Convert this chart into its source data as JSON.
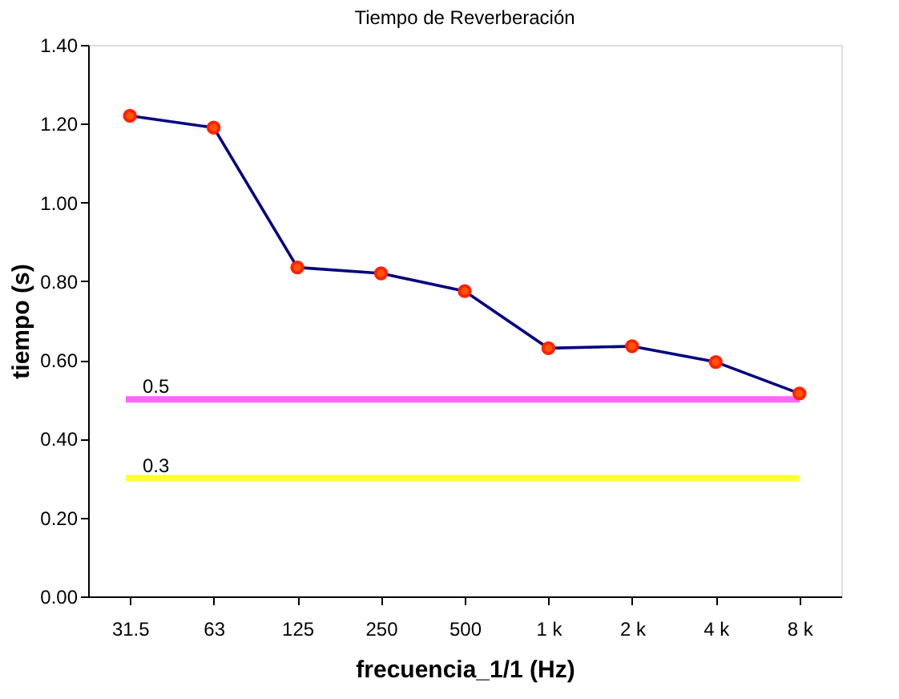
{
  "chart_data": {
    "type": "line",
    "title": "Tiempo de Reverberación",
    "xlabel": "frecuencia_1/1 (Hz)",
    "ylabel": "tiempo (s)",
    "categories": [
      "31.5",
      "63",
      "125",
      "250",
      "500",
      "1 k",
      "2 k",
      "4 k",
      "8 k"
    ],
    "series": [
      {
        "color": "#000080",
        "values": [
          1.22,
          1.19,
          0.835,
          0.82,
          0.775,
          0.63,
          0.635,
          0.595,
          0.515
        ]
      }
    ],
    "marker": "circle",
    "line_style": "solid",
    "ylim": [
      0,
      1.4
    ],
    "yticks": [
      {
        "value": 0,
        "label": "0.00"
      },
      {
        "value": 0.2,
        "label": "0.20"
      },
      {
        "value": 0.4,
        "label": "0.40"
      },
      {
        "value": 0.6,
        "label": "0.60"
      },
      {
        "value": 0.8,
        "label": "0.80"
      },
      {
        "value": 1.0,
        "label": "1.00"
      },
      {
        "value": 1.2,
        "label": "1.20"
      },
      {
        "value": 1.4,
        "label": "1.40"
      }
    ],
    "ref_lines": [
      {
        "axis": "y",
        "value": 0.5,
        "label": "0.5",
        "color": "#ff66ff"
      },
      {
        "axis": "y",
        "value": 0.3,
        "label": "0.3",
        "color": "#ffff33"
      }
    ],
    "grid": false
  }
}
